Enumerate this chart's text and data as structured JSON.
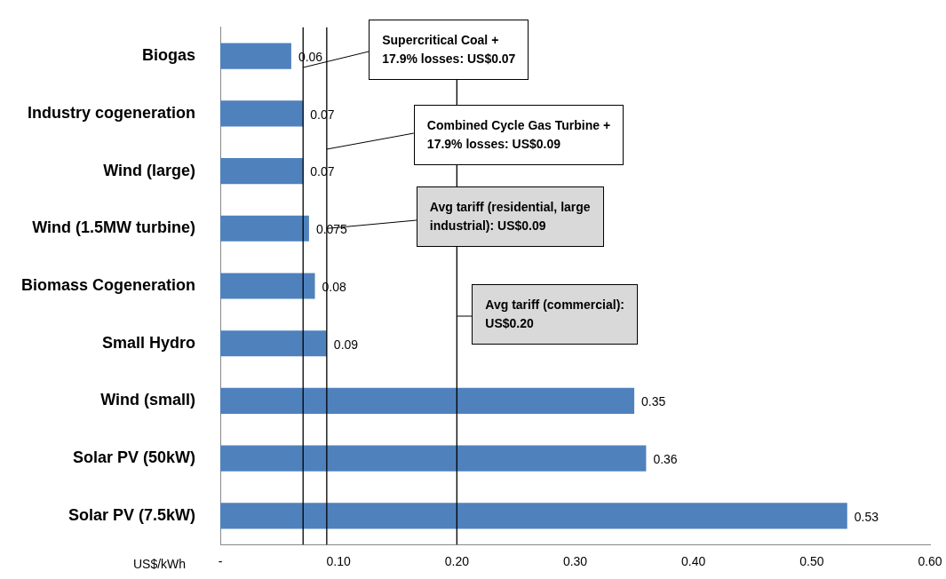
{
  "chart_data": {
    "type": "bar",
    "orientation": "horizontal",
    "xlabel": "US$/kWh",
    "categories": [
      "Biogas",
      "Industry cogeneration",
      "Wind (large)",
      "Wind (1.5MW turbine)",
      "Biomass Cogeneration",
      "Small Hydro",
      "Wind (small)",
      "Solar PV (50kW)",
      "Solar PV (7.5kW)"
    ],
    "values": [
      0.06,
      0.07,
      0.07,
      0.075,
      0.08,
      0.09,
      0.35,
      0.36,
      0.53
    ],
    "color": "#4f81bd",
    "data_labels": true,
    "xlim": [
      0,
      0.6
    ],
    "xticks": [
      {
        "value": 0,
        "label": "-"
      },
      {
        "value": 0.1,
        "label": "0.10"
      },
      {
        "value": 0.2,
        "label": "0.20"
      },
      {
        "value": 0.3,
        "label": "0.30"
      },
      {
        "value": 0.4,
        "label": "0.40"
      },
      {
        "value": 0.5,
        "label": "0.50"
      },
      {
        "value": 0.6,
        "label": "0.60"
      }
    ],
    "grid": false,
    "legend": false,
    "ref_lines": [
      {
        "axis": "x",
        "value": 0.07,
        "label": "Supercritical Coal +\n17.9% losses: US$0.07",
        "color": "#000000"
      },
      {
        "axis": "x",
        "value": 0.09,
        "label": "Combined Cycle Gas Turbine +\n17.9% losses: US$0.09",
        "color": "#000000"
      },
      {
        "axis": "x",
        "value": 0.2,
        "label": "Avg tariff (commercial):\nUS$0.20",
        "color": "#000000"
      }
    ],
    "annotations": [
      {
        "text": "Avg tariff (residential, large\nindustrial): US$0.09",
        "x": 0.09,
        "y": "Wind (1.5MW turbine)"
      }
    ]
  }
}
